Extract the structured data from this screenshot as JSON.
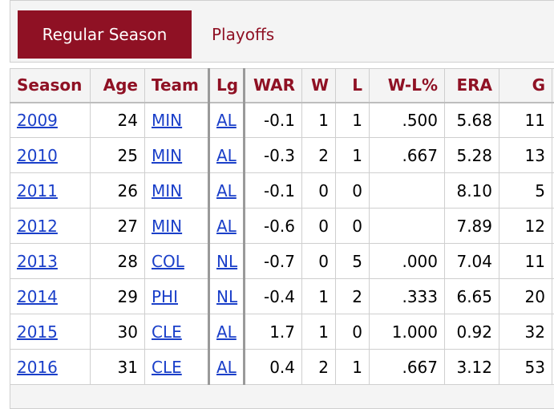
{
  "tabs": [
    {
      "label": "Regular Season",
      "active": true
    },
    {
      "label": "Playoffs",
      "active": false
    }
  ],
  "columns": [
    "Season",
    "Age",
    "Team",
    "Lg",
    "WAR",
    "W",
    "L",
    "W-L%",
    "ERA",
    "G",
    ""
  ],
  "rows": [
    {
      "season": "2009",
      "age": "24",
      "team": "MIN",
      "lg": "AL",
      "war": "-0.1",
      "w": "1",
      "l": "1",
      "wl": ".500",
      "era": "5.68",
      "g": "11"
    },
    {
      "season": "2010",
      "age": "25",
      "team": "MIN",
      "lg": "AL",
      "war": "-0.3",
      "w": "2",
      "l": "1",
      "wl": ".667",
      "era": "5.28",
      "g": "13"
    },
    {
      "season": "2011",
      "age": "26",
      "team": "MIN",
      "lg": "AL",
      "war": "-0.1",
      "w": "0",
      "l": "0",
      "wl": "",
      "era": "8.10",
      "g": "5"
    },
    {
      "season": "2012",
      "age": "27",
      "team": "MIN",
      "lg": "AL",
      "war": "-0.6",
      "w": "0",
      "l": "0",
      "wl": "",
      "era": "7.89",
      "g": "12"
    },
    {
      "season": "2013",
      "age": "28",
      "team": "COL",
      "lg": "NL",
      "war": "-0.7",
      "w": "0",
      "l": "5",
      "wl": ".000",
      "era": "7.04",
      "g": "11"
    },
    {
      "season": "2014",
      "age": "29",
      "team": "PHI",
      "lg": "NL",
      "war": "-0.4",
      "w": "1",
      "l": "2",
      "wl": ".333",
      "era": "6.65",
      "g": "20"
    },
    {
      "season": "2015",
      "age": "30",
      "team": "CLE",
      "lg": "AL",
      "war": "1.7",
      "w": "1",
      "l": "0",
      "wl": "1.000",
      "era": "0.92",
      "g": "32"
    },
    {
      "season": "2016",
      "age": "31",
      "team": "CLE",
      "lg": "AL",
      "war": "0.4",
      "w": "2",
      "l": "1",
      "wl": ".667",
      "era": "3.12",
      "g": "53"
    }
  ]
}
